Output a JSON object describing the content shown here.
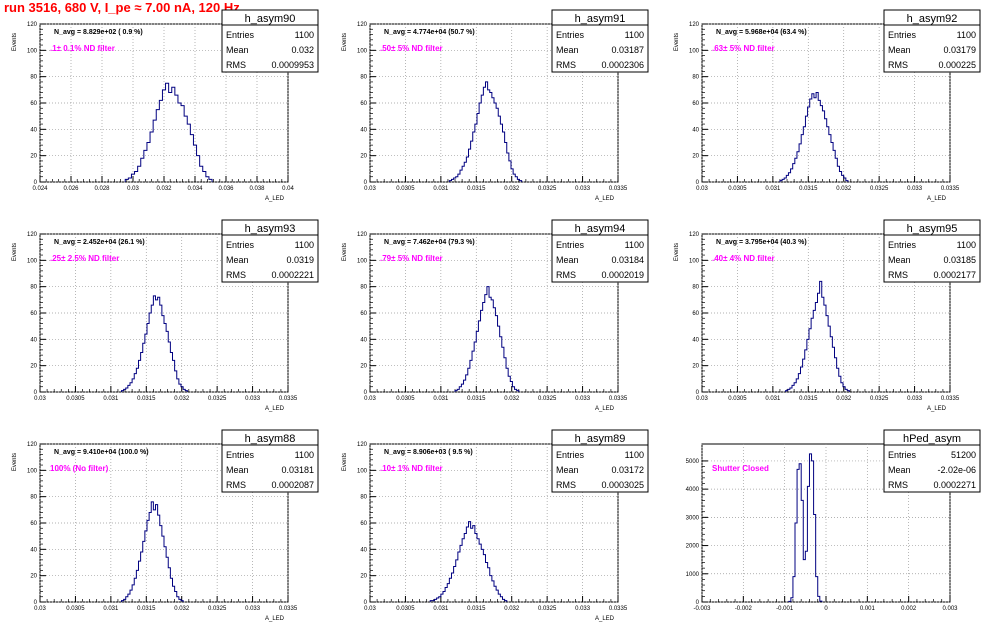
{
  "run_title": "run 3516,   680 V, I_pe ≈ 7.00 nA, 120 Hz",
  "stats_labels": {
    "entries": "Entries",
    "mean": "Mean",
    "rms": "RMS"
  },
  "colors": {
    "histogram": "#000080",
    "annotation": "#ff00ff",
    "run_title": "#ff0000"
  },
  "chart_data": [
    {
      "type": "histogram",
      "name": "h_asym90",
      "title": "N_avg = 8.829e+02 ( 0.9 %)",
      "annotation": ".1± 0.1% ND filter",
      "xlabel": "A_LED",
      "ylabel": "Events",
      "stats": {
        "entries": "1100",
        "mean": "0.032",
        "rms": "0.0009953"
      },
      "xlim": [
        0.024,
        0.04
      ],
      "ylim": [
        0,
        120
      ],
      "xticks": [
        "0.024",
        "0.026",
        "0.028",
        "0.03",
        "0.032",
        "0.034",
        "0.036",
        "0.038",
        "0.04"
      ],
      "yticks": [
        "0",
        "20",
        "40",
        "60",
        "80",
        "100",
        "120"
      ],
      "bins": {
        "start": 0.0295,
        "width": 0.0002,
        "counts": [
          2,
          3,
          6,
          8,
          12,
          18,
          24,
          30,
          38,
          47,
          55,
          62,
          70,
          75,
          68,
          72,
          66,
          60,
          58,
          50,
          44,
          36,
          28,
          20,
          12,
          8,
          4,
          2
        ]
      }
    },
    {
      "type": "histogram",
      "name": "h_asym91",
      "title": "N_avg = 4.774e+04 (50.7 %)",
      "annotation": ".50± 5% ND filter",
      "xlabel": "A_LED",
      "ylabel": "Events",
      "stats": {
        "entries": "1100",
        "mean": "0.03187",
        "rms": "0.0002306"
      },
      "xlim": [
        0.03,
        0.0335
      ],
      "ylim": [
        0,
        120
      ],
      "xticks": [
        "0.03",
        "0.0305",
        "0.031",
        "0.0315",
        "0.032",
        "0.0325",
        "0.033",
        "0.0335"
      ],
      "yticks": [
        "0",
        "20",
        "40",
        "60",
        "80",
        "100",
        "120"
      ],
      "bins": {
        "start": 0.03112,
        "width": 3e-05,
        "counts": [
          1,
          2,
          3,
          4,
          6,
          9,
          12,
          15,
          19,
          25,
          31,
          38,
          44,
          52,
          60,
          66,
          72,
          76,
          70,
          68,
          64,
          60,
          56,
          50,
          44,
          38,
          30,
          22,
          16,
          10,
          6,
          4,
          2,
          1
        ]
      }
    },
    {
      "type": "histogram",
      "name": "h_asym92",
      "title": "N_avg = 5.968e+04 (63.4 %)",
      "annotation": ".63± 5% ND filter",
      "xlabel": "A_LED",
      "ylabel": "Events",
      "stats": {
        "entries": "1100",
        "mean": "0.03179",
        "rms": "0.000225"
      },
      "xlim": [
        0.03,
        0.0335
      ],
      "ylim": [
        0,
        120
      ],
      "xticks": [
        "0.03",
        "0.0305",
        "0.031",
        "0.0315",
        "0.032",
        "0.0325",
        "0.033",
        "0.0335"
      ],
      "yticks": [
        "0",
        "20",
        "40",
        "60",
        "80",
        "100",
        "120"
      ],
      "bins": {
        "start": 0.0311,
        "width": 3e-05,
        "counts": [
          1,
          2,
          3,
          5,
          7,
          10,
          14,
          18,
          23,
          29,
          36,
          42,
          50,
          57,
          63,
          67,
          64,
          68,
          62,
          58,
          54,
          48,
          42,
          36,
          30,
          24,
          18,
          12,
          8,
          5,
          3,
          1
        ]
      }
    },
    {
      "type": "histogram",
      "name": "h_asym93",
      "title": "N_avg = 2.452e+04 (26.1 %)",
      "annotation": ".25± 2.5% ND filter",
      "xlabel": "A_LED",
      "ylabel": "Events",
      "stats": {
        "entries": "1100",
        "mean": "0.0319",
        "rms": "0.0002221"
      },
      "xlim": [
        0.03,
        0.0335
      ],
      "ylim": [
        0,
        120
      ],
      "xticks": [
        "0.03",
        "0.0305",
        "0.031",
        "0.0315",
        "0.032",
        "0.0325",
        "0.033",
        "0.0335"
      ],
      "yticks": [
        "0",
        "20",
        "40",
        "60",
        "80",
        "100",
        "120"
      ],
      "bins": {
        "start": 0.03115,
        "width": 3e-05,
        "counts": [
          1,
          2,
          3,
          5,
          7,
          10,
          14,
          18,
          24,
          30,
          37,
          44,
          52,
          60,
          66,
          73,
          70,
          72,
          66,
          58,
          52,
          46,
          38,
          30,
          24,
          16,
          10,
          6,
          4,
          2,
          1
        ]
      }
    },
    {
      "type": "histogram",
      "name": "h_asym94",
      "title": "N_avg = 7.462e+04 (79.3 %)",
      "annotation": ".79± 5% ND filter",
      "xlabel": "A_LED",
      "ylabel": "Events",
      "stats": {
        "entries": "1100",
        "mean": "0.03184",
        "rms": "0.0002019"
      },
      "xlim": [
        0.03,
        0.0335
      ],
      "ylim": [
        0,
        120
      ],
      "xticks": [
        "0.03",
        "0.0305",
        "0.031",
        "0.0315",
        "0.032",
        "0.0325",
        "0.033",
        "0.0335"
      ],
      "yticks": [
        "0",
        "20",
        "40",
        "60",
        "80",
        "100",
        "120"
      ],
      "bins": {
        "start": 0.0312,
        "width": 3e-05,
        "counts": [
          1,
          2,
          4,
          6,
          9,
          13,
          18,
          24,
          31,
          38,
          46,
          54,
          62,
          68,
          74,
          80,
          72,
          70,
          64,
          58,
          50,
          42,
          34,
          26,
          18,
          12,
          8,
          4,
          2,
          1
        ]
      }
    },
    {
      "type": "histogram",
      "name": "h_asym95",
      "title": "N_avg = 3.795e+04 (40.3 %)",
      "annotation": ".40± 4% ND filter",
      "xlabel": "A_LED",
      "ylabel": "Events",
      "stats": {
        "entries": "1100",
        "mean": "0.03185",
        "rms": "0.0002177"
      },
      "xlim": [
        0.03,
        0.0335
      ],
      "ylim": [
        0,
        120
      ],
      "xticks": [
        "0.03",
        "0.0305",
        "0.031",
        "0.0315",
        "0.032",
        "0.0325",
        "0.033",
        "0.0335"
      ],
      "yticks": [
        "0",
        "20",
        "40",
        "60",
        "80",
        "100",
        "120"
      ],
      "bins": {
        "start": 0.03118,
        "width": 3e-05,
        "counts": [
          1,
          2,
          3,
          5,
          7,
          10,
          14,
          19,
          25,
          32,
          40,
          48,
          56,
          62,
          68,
          75,
          84,
          72,
          66,
          58,
          50,
          42,
          34,
          26,
          18,
          12,
          7,
          4,
          2,
          1
        ]
      }
    },
    {
      "type": "histogram",
      "name": "h_asym88",
      "title": "N_avg = 9.410e+04 (100.0 %)",
      "annotation": "100% (No filter)",
      "xlabel": "A_LED",
      "ylabel": "Events",
      "stats": {
        "entries": "1100",
        "mean": "0.03181",
        "rms": "0.0002087"
      },
      "xlim": [
        0.03,
        0.0335
      ],
      "ylim": [
        0,
        120
      ],
      "xticks": [
        "0.03",
        "0.0305",
        "0.031",
        "0.0315",
        "0.032",
        "0.0325",
        "0.033",
        "0.0335"
      ],
      "yticks": [
        "0",
        "20",
        "40",
        "60",
        "80",
        "100",
        "120"
      ],
      "bins": {
        "start": 0.03115,
        "width": 3e-05,
        "counts": [
          1,
          2,
          4,
          6,
          9,
          13,
          18,
          24,
          31,
          38,
          46,
          54,
          62,
          68,
          76,
          70,
          74,
          66,
          58,
          50,
          42,
          34,
          26,
          18,
          12,
          8,
          4,
          2,
          1
        ]
      }
    },
    {
      "type": "histogram",
      "name": "h_asym89",
      "title": "N_avg = 8.906e+03 ( 9.5 %)",
      "annotation": ".10± 1% ND filter",
      "xlabel": "A_LED",
      "ylabel": "Events",
      "stats": {
        "entries": "1100",
        "mean": "0.03172",
        "rms": "0.0003025"
      },
      "xlim": [
        0.03,
        0.0335
      ],
      "ylim": [
        0,
        120
      ],
      "xticks": [
        "0.03",
        "0.0305",
        "0.031",
        "0.0315",
        "0.032",
        "0.0325",
        "0.033",
        "0.0335"
      ],
      "yticks": [
        "0",
        "20",
        "40",
        "60",
        "80",
        "100",
        "120"
      ],
      "bins": {
        "start": 0.03085,
        "width": 3e-05,
        "counts": [
          1,
          1,
          2,
          3,
          4,
          6,
          8,
          11,
          14,
          18,
          22,
          27,
          32,
          38,
          43,
          48,
          52,
          57,
          61,
          56,
          58,
          52,
          48,
          44,
          40,
          36,
          30,
          26,
          20,
          16,
          12,
          9,
          6,
          4,
          2,
          1
        ]
      }
    },
    {
      "type": "histogram",
      "name": "hPed_asym",
      "title": "",
      "annotation": "Shutter Closed",
      "xlabel": "",
      "ylabel": "",
      "stats": {
        "entries": "51200",
        "mean": "-2.02e-06",
        "rms": "0.0002271"
      },
      "xlim": [
        -0.003,
        0.003
      ],
      "ylim": [
        0,
        5600
      ],
      "xticks": [
        "-0.003",
        "-0.002",
        "-0.001",
        "0",
        "0.001",
        "0.002",
        "0.003"
      ],
      "yticks": [
        "0",
        "1000",
        "2000",
        "3000",
        "4000",
        "5000"
      ],
      "bins": {
        "start": -0.0009,
        "width": 5e-05,
        "counts": [
          20,
          150,
          900,
          2800,
          4700,
          4900,
          3600,
          1500,
          1800,
          4100,
          5250,
          5000,
          3100,
          900,
          200,
          30
        ]
      }
    }
  ]
}
